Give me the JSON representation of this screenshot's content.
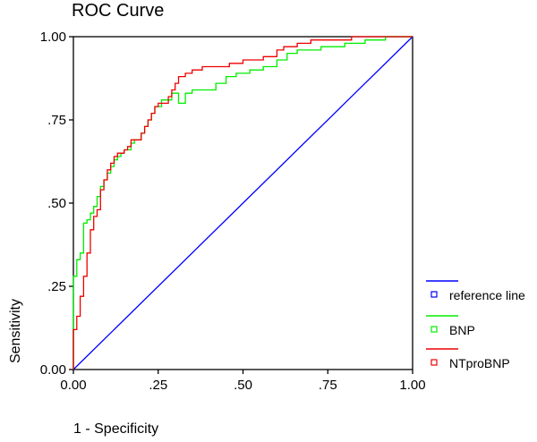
{
  "chart_data": {
    "type": "line",
    "title": "ROC Curve",
    "xlabel": "1 - Specificity",
    "ylabel": "Sensitivity",
    "xlim": [
      0,
      1
    ],
    "ylim": [
      0,
      1
    ],
    "x_ticks": [
      "0.00",
      ".25",
      ".50",
      ".75",
      "1.00"
    ],
    "y_ticks": [
      "0.00",
      ".25",
      ".50",
      ".75",
      "1.00"
    ],
    "grid": false,
    "legend_position": "bottom-right",
    "series": [
      {
        "name": "reference line",
        "color": "#0000ff",
        "points": [
          [
            0,
            0
          ],
          [
            1,
            1
          ]
        ]
      },
      {
        "name": "BNP",
        "color": "#00ee00",
        "points": [
          [
            0.0,
            0.0
          ],
          [
            0.0,
            0.2
          ],
          [
            0.0,
            0.28
          ],
          [
            0.01,
            0.28
          ],
          [
            0.01,
            0.33
          ],
          [
            0.02,
            0.33
          ],
          [
            0.02,
            0.35
          ],
          [
            0.03,
            0.35
          ],
          [
            0.03,
            0.44
          ],
          [
            0.04,
            0.44
          ],
          [
            0.04,
            0.45
          ],
          [
            0.05,
            0.45
          ],
          [
            0.05,
            0.47
          ],
          [
            0.06,
            0.47
          ],
          [
            0.06,
            0.49
          ],
          [
            0.07,
            0.49
          ],
          [
            0.07,
            0.52
          ],
          [
            0.08,
            0.52
          ],
          [
            0.08,
            0.55
          ],
          [
            0.09,
            0.55
          ],
          [
            0.09,
            0.57
          ],
          [
            0.1,
            0.57
          ],
          [
            0.1,
            0.59
          ],
          [
            0.11,
            0.59
          ],
          [
            0.11,
            0.61
          ],
          [
            0.12,
            0.61
          ],
          [
            0.12,
            0.63
          ],
          [
            0.13,
            0.63
          ],
          [
            0.13,
            0.64
          ],
          [
            0.14,
            0.64
          ],
          [
            0.14,
            0.65
          ],
          [
            0.15,
            0.65
          ],
          [
            0.15,
            0.66
          ],
          [
            0.17,
            0.66
          ],
          [
            0.17,
            0.68
          ],
          [
            0.18,
            0.68
          ],
          [
            0.18,
            0.69
          ],
          [
            0.2,
            0.69
          ],
          [
            0.2,
            0.71
          ],
          [
            0.21,
            0.71
          ],
          [
            0.21,
            0.73
          ],
          [
            0.22,
            0.73
          ],
          [
            0.22,
            0.75
          ],
          [
            0.23,
            0.75
          ],
          [
            0.23,
            0.77
          ],
          [
            0.24,
            0.77
          ],
          [
            0.24,
            0.79
          ],
          [
            0.26,
            0.79
          ],
          [
            0.26,
            0.81
          ],
          [
            0.29,
            0.81
          ],
          [
            0.29,
            0.83
          ],
          [
            0.31,
            0.83
          ],
          [
            0.31,
            0.8
          ],
          [
            0.33,
            0.8
          ],
          [
            0.33,
            0.83
          ],
          [
            0.35,
            0.83
          ],
          [
            0.35,
            0.84
          ],
          [
            0.42,
            0.84
          ],
          [
            0.42,
            0.86
          ],
          [
            0.45,
            0.86
          ],
          [
            0.45,
            0.88
          ],
          [
            0.48,
            0.88
          ],
          [
            0.48,
            0.89
          ],
          [
            0.52,
            0.89
          ],
          [
            0.52,
            0.9
          ],
          [
            0.56,
            0.9
          ],
          [
            0.56,
            0.91
          ],
          [
            0.6,
            0.91
          ],
          [
            0.6,
            0.93
          ],
          [
            0.63,
            0.93
          ],
          [
            0.63,
            0.95
          ],
          [
            0.66,
            0.95
          ],
          [
            0.66,
            0.96
          ],
          [
            0.73,
            0.96
          ],
          [
            0.73,
            0.97
          ],
          [
            0.8,
            0.97
          ],
          [
            0.8,
            0.98
          ],
          [
            0.86,
            0.98
          ],
          [
            0.86,
            0.99
          ],
          [
            0.92,
            0.99
          ],
          [
            0.92,
            1.0
          ],
          [
            1.0,
            1.0
          ]
        ]
      },
      {
        "name": "NTproBNP",
        "color": "#ee0000",
        "points": [
          [
            0.0,
            0.0
          ],
          [
            0.0,
            0.12
          ],
          [
            0.01,
            0.12
          ],
          [
            0.01,
            0.16
          ],
          [
            0.02,
            0.16
          ],
          [
            0.02,
            0.22
          ],
          [
            0.03,
            0.22
          ],
          [
            0.03,
            0.28
          ],
          [
            0.04,
            0.28
          ],
          [
            0.04,
            0.35
          ],
          [
            0.05,
            0.35
          ],
          [
            0.05,
            0.42
          ],
          [
            0.06,
            0.42
          ],
          [
            0.06,
            0.46
          ],
          [
            0.07,
            0.46
          ],
          [
            0.07,
            0.48
          ],
          [
            0.08,
            0.48
          ],
          [
            0.08,
            0.54
          ],
          [
            0.09,
            0.54
          ],
          [
            0.09,
            0.57
          ],
          [
            0.1,
            0.57
          ],
          [
            0.1,
            0.6
          ],
          [
            0.11,
            0.6
          ],
          [
            0.11,
            0.62
          ],
          [
            0.12,
            0.62
          ],
          [
            0.12,
            0.64
          ],
          [
            0.13,
            0.64
          ],
          [
            0.13,
            0.65
          ],
          [
            0.15,
            0.65
          ],
          [
            0.15,
            0.66
          ],
          [
            0.16,
            0.66
          ],
          [
            0.16,
            0.67
          ],
          [
            0.17,
            0.67
          ],
          [
            0.17,
            0.69
          ],
          [
            0.2,
            0.69
          ],
          [
            0.2,
            0.71
          ],
          [
            0.21,
            0.71
          ],
          [
            0.21,
            0.73
          ],
          [
            0.22,
            0.73
          ],
          [
            0.22,
            0.75
          ],
          [
            0.23,
            0.75
          ],
          [
            0.23,
            0.77
          ],
          [
            0.24,
            0.77
          ],
          [
            0.24,
            0.79
          ],
          [
            0.25,
            0.79
          ],
          [
            0.25,
            0.8
          ],
          [
            0.28,
            0.8
          ],
          [
            0.28,
            0.82
          ],
          [
            0.29,
            0.82
          ],
          [
            0.29,
            0.84
          ],
          [
            0.3,
            0.84
          ],
          [
            0.3,
            0.86
          ],
          [
            0.31,
            0.86
          ],
          [
            0.31,
            0.88
          ],
          [
            0.33,
            0.88
          ],
          [
            0.33,
            0.89
          ],
          [
            0.35,
            0.89
          ],
          [
            0.35,
            0.9
          ],
          [
            0.38,
            0.9
          ],
          [
            0.38,
            0.91
          ],
          [
            0.46,
            0.91
          ],
          [
            0.46,
            0.92
          ],
          [
            0.5,
            0.92
          ],
          [
            0.5,
            0.93
          ],
          [
            0.56,
            0.93
          ],
          [
            0.56,
            0.94
          ],
          [
            0.6,
            0.94
          ],
          [
            0.6,
            0.96
          ],
          [
            0.62,
            0.96
          ],
          [
            0.62,
            0.97
          ],
          [
            0.66,
            0.97
          ],
          [
            0.66,
            0.98
          ],
          [
            0.7,
            0.98
          ],
          [
            0.7,
            0.99
          ],
          [
            0.82,
            0.99
          ],
          [
            0.82,
            1.0
          ],
          [
            1.0,
            1.0
          ]
        ]
      }
    ]
  }
}
